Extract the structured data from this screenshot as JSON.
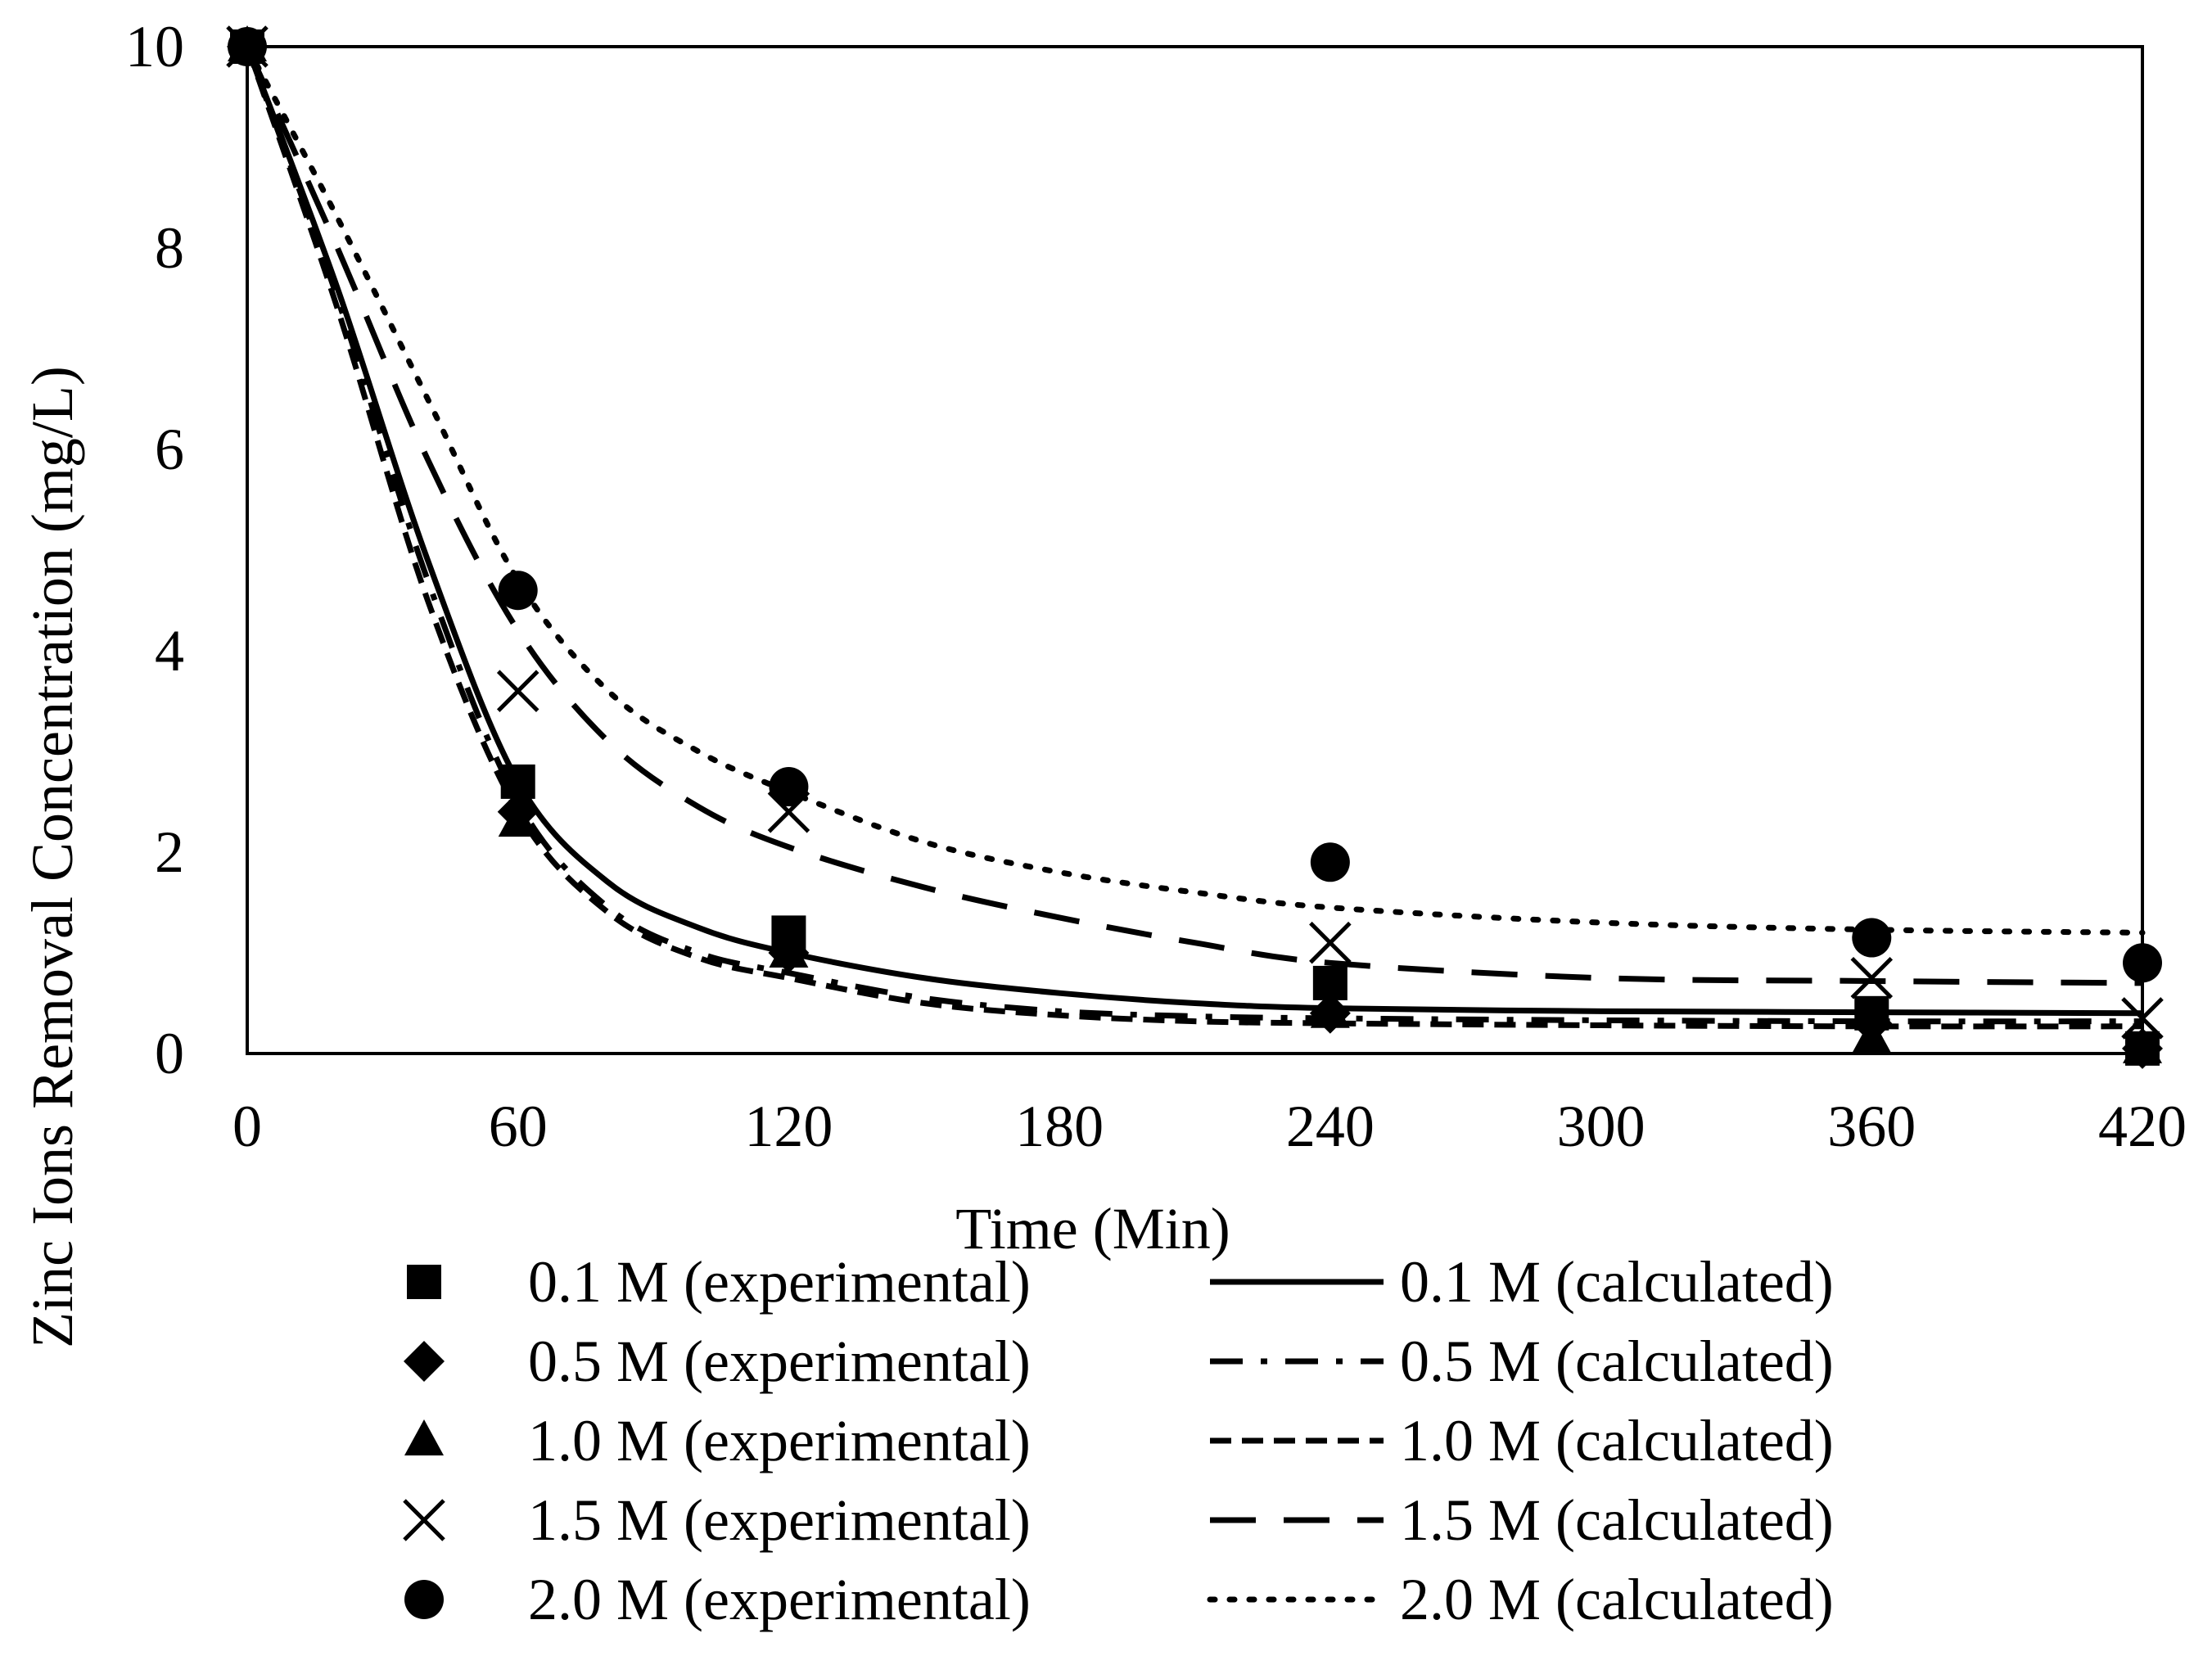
{
  "chart_data": {
    "type": "scatter",
    "xlabel": "Time (Min)",
    "ylabel": "Zinc Ions Removal Concentration (mg/L)",
    "xlim": [
      0,
      420
    ],
    "ylim": [
      0,
      10
    ],
    "xticks": [
      0,
      60,
      120,
      180,
      240,
      300,
      360,
      420
    ],
    "yticks": [
      0,
      2,
      4,
      6,
      8,
      10
    ],
    "grid": false,
    "legend_position": "bottom",
    "series": [
      {
        "name": "0.1 M (experimental)",
        "kind": "points",
        "marker": "square",
        "x": [
          0,
          60,
          120,
          240,
          360,
          420
        ],
        "y": [
          10,
          2.7,
          1.2,
          0.7,
          0.4,
          0.05
        ]
      },
      {
        "name": "0.5 M (experimental)",
        "kind": "points",
        "marker": "diamond",
        "x": [
          0,
          60,
          120,
          240,
          360,
          420
        ],
        "y": [
          10,
          2.4,
          1.0,
          0.4,
          0.3,
          0.05
        ]
      },
      {
        "name": "1.0 M (experimental)",
        "kind": "points",
        "marker": "triangle",
        "x": [
          0,
          60,
          120,
          240,
          360,
          420
        ],
        "y": [
          10,
          2.3,
          1.0,
          0.4,
          0.15,
          0.05
        ]
      },
      {
        "name": "1.5 M (experimental)",
        "kind": "points",
        "marker": "cross",
        "x": [
          0,
          60,
          120,
          240,
          360,
          420
        ],
        "y": [
          10,
          3.6,
          2.4,
          1.1,
          0.75,
          0.35
        ]
      },
      {
        "name": "2.0 M (experimental)",
        "kind": "points",
        "marker": "circle",
        "x": [
          0,
          60,
          120,
          240,
          360,
          420
        ],
        "y": [
          10,
          4.6,
          2.65,
          1.9,
          1.15,
          0.9
        ]
      },
      {
        "name": "0.1 M (calculated)",
        "kind": "line",
        "dash": "solid",
        "x": [
          0,
          20,
          40,
          60,
          80,
          100,
          120,
          150,
          180,
          210,
          240,
          300,
          360,
          420
        ],
        "y": [
          10,
          7.6,
          4.9,
          2.7,
          1.7,
          1.25,
          1.0,
          0.75,
          0.6,
          0.5,
          0.45,
          0.42,
          0.41,
          0.4
        ]
      },
      {
        "name": "0.5 M (calculated)",
        "kind": "line",
        "dash": "dash-dot",
        "x": [
          0,
          20,
          40,
          60,
          80,
          100,
          120,
          150,
          180,
          210,
          240,
          300,
          360,
          420
        ],
        "y": [
          10,
          7.5,
          4.7,
          2.5,
          1.45,
          1.0,
          0.8,
          0.55,
          0.42,
          0.37,
          0.35,
          0.33,
          0.32,
          0.32
        ]
      },
      {
        "name": "1.0 M (calculated)",
        "kind": "line",
        "dash": "short-dash",
        "x": [
          0,
          20,
          40,
          60,
          80,
          100,
          120,
          150,
          180,
          210,
          240,
          300,
          360,
          420
        ],
        "y": [
          10,
          7.4,
          4.5,
          2.4,
          1.4,
          0.95,
          0.75,
          0.5,
          0.38,
          0.32,
          0.3,
          0.28,
          0.27,
          0.27
        ]
      },
      {
        "name": "1.5 M (calculated)",
        "kind": "line",
        "dash": "long-dash",
        "x": [
          0,
          20,
          40,
          60,
          80,
          100,
          120,
          150,
          180,
          210,
          240,
          300,
          360,
          420
        ],
        "y": [
          10,
          8.0,
          5.9,
          4.2,
          3.1,
          2.45,
          2.05,
          1.65,
          1.35,
          1.1,
          0.9,
          0.75,
          0.72,
          0.7
        ]
      },
      {
        "name": "2.0 M (calculated)",
        "kind": "line",
        "dash": "dotted",
        "x": [
          0,
          20,
          40,
          60,
          80,
          100,
          120,
          150,
          180,
          210,
          240,
          300,
          360,
          420
        ],
        "y": [
          10,
          8.3,
          6.5,
          4.7,
          3.6,
          3.0,
          2.6,
          2.1,
          1.8,
          1.6,
          1.45,
          1.3,
          1.23,
          1.2
        ]
      }
    ]
  }
}
